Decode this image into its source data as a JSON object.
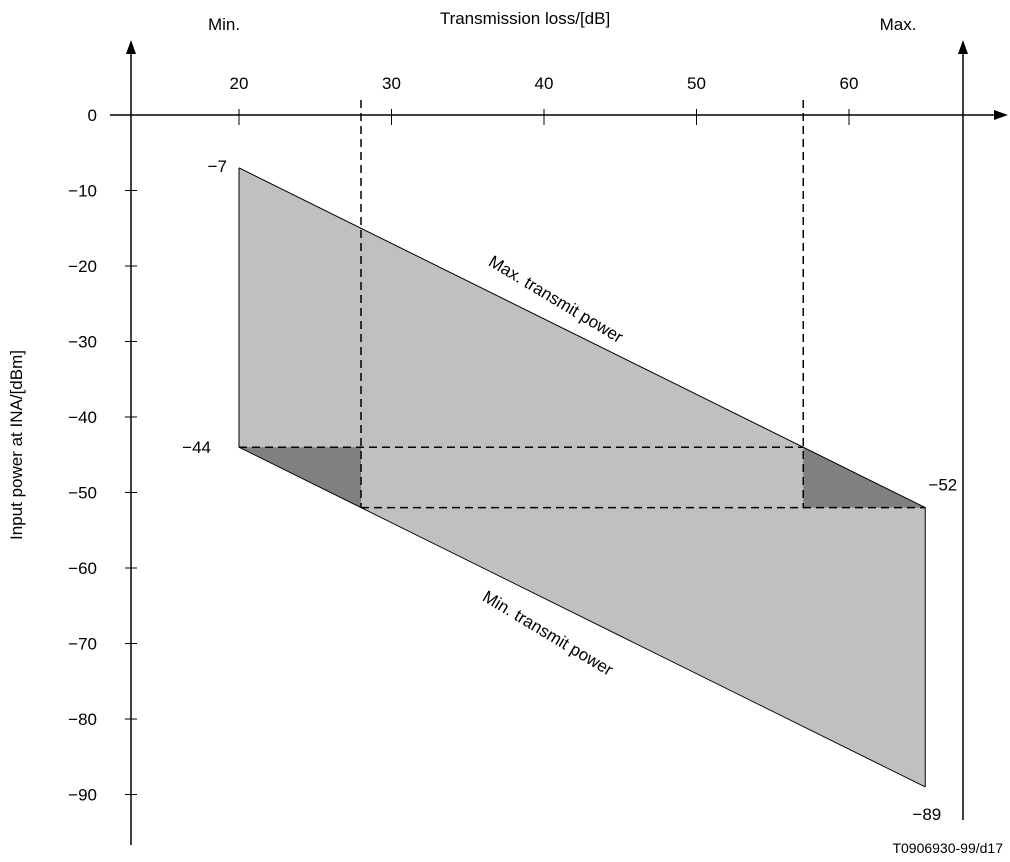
{
  "chart_data": {
    "type": "area",
    "title": "",
    "xlabel": "Transmission loss/[dB]",
    "ylabel": "Input power at INA/[dBm]",
    "x_min_label": "Min.",
    "x_max_label": "Max.",
    "x_ticks": [
      {
        "value": 20,
        "label": "20"
      },
      {
        "value": 30,
        "label": "30"
      },
      {
        "value": 40,
        "label": "40"
      },
      {
        "value": 50,
        "label": "50"
      },
      {
        "value": 60,
        "label": "60"
      }
    ],
    "y_ticks": [
      {
        "value": 0,
        "label": "0"
      },
      {
        "value": -10,
        "label": "−10"
      },
      {
        "value": -20,
        "label": "−20"
      },
      {
        "value": -30,
        "label": "−30"
      },
      {
        "value": -40,
        "label": "−40"
      },
      {
        "value": -50,
        "label": "−50"
      },
      {
        "value": -60,
        "label": "−60"
      },
      {
        "value": -70,
        "label": "−70"
      },
      {
        "value": -80,
        "label": "−80"
      },
      {
        "value": -90,
        "label": "−90"
      }
    ],
    "grid": false,
    "series": [
      {
        "name": "Max. transmit power",
        "x": [
          20,
          65
        ],
        "y": [
          -7,
          -52
        ]
      },
      {
        "name": "Min. transmit power",
        "x": [
          20,
          65
        ],
        "y": [
          -44,
          -89
        ]
      }
    ],
    "region": {
      "fill": "#c0c0c0",
      "corner_fill": "#808080",
      "polygon": [
        [
          20,
          -7
        ],
        [
          65,
          -52
        ],
        [
          65,
          -89
        ],
        [
          20,
          -44
        ]
      ]
    },
    "dashed_verticals": [
      28,
      57
    ],
    "dashed_horizontals": [
      {
        "y": -44,
        "x_from": 20,
        "x_to": 57
      },
      {
        "y": -52,
        "x_from": 28,
        "x_to": 65
      }
    ],
    "point_labels": [
      {
        "label": "−7",
        "x": 20,
        "y": -7
      },
      {
        "label": "−44",
        "x": 20,
        "y": -44
      },
      {
        "label": "−52",
        "x": 65,
        "y": -52
      },
      {
        "label": "−89",
        "x": 65,
        "y": -89
      }
    ]
  },
  "figure_id": "T0906930-99/d17"
}
